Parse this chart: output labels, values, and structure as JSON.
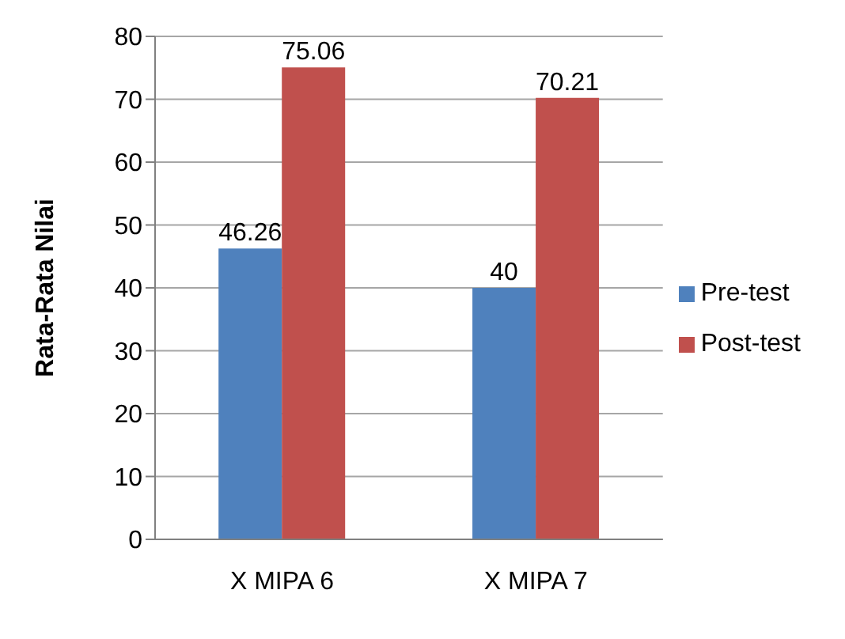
{
  "chart_data": {
    "type": "bar",
    "ylabel": "Rata-Rata Nilai",
    "categories": [
      "X MIPA 6",
      "X MIPA 7"
    ],
    "series": [
      {
        "name": "Pre-test",
        "color": "#4f81bd",
        "values": [
          46.26,
          40
        ]
      },
      {
        "name": "Post-test",
        "color": "#c0504d",
        "values": [
          75.06,
          70.21
        ]
      }
    ],
    "ylim": [
      0,
      80
    ],
    "yticks": [
      0,
      10,
      20,
      30,
      40,
      50,
      60,
      70,
      80
    ],
    "grid": "y",
    "legend": "right",
    "data_labels": true
  }
}
